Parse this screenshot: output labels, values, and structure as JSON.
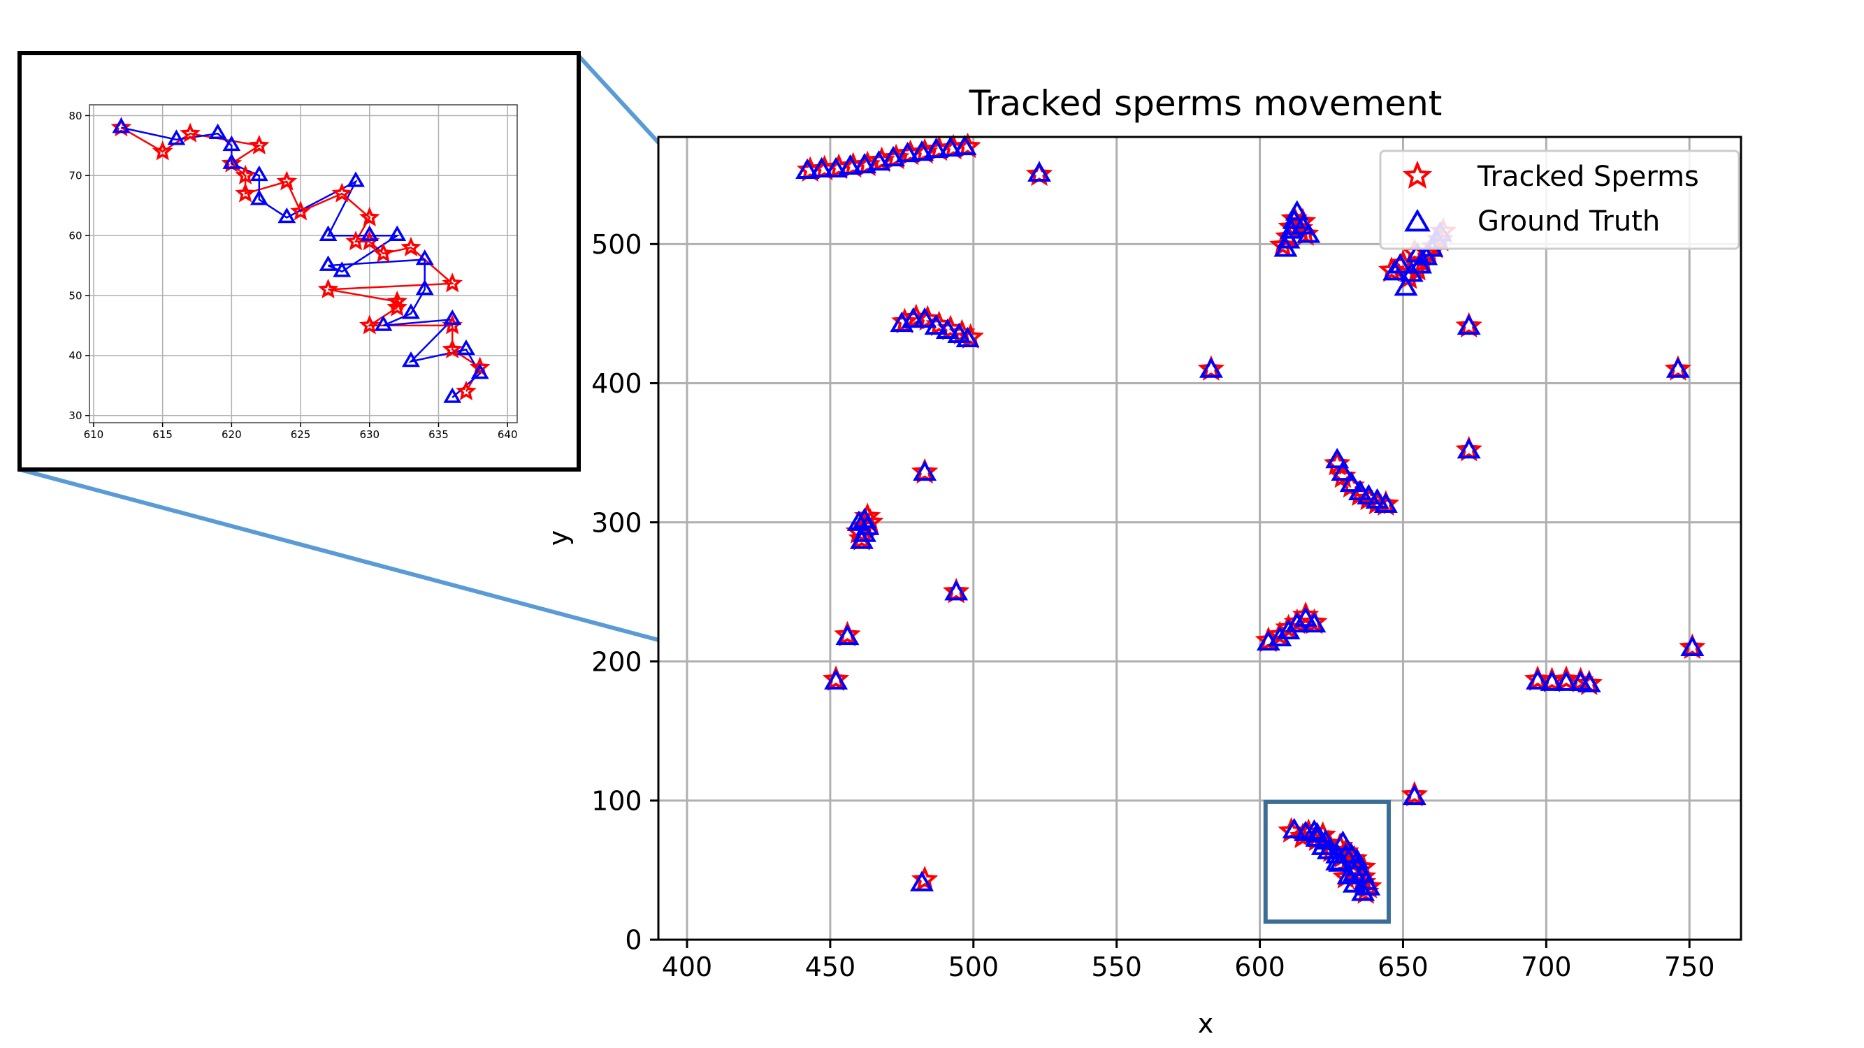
{
  "chart_data": [
    {
      "type": "scatter",
      "title": "Tracked sperms movement",
      "xlabel": "x",
      "ylabel": "y",
      "xlim": [
        390,
        768
      ],
      "ylim": [
        0,
        577
      ],
      "xticks": [
        400,
        450,
        500,
        550,
        600,
        650,
        700,
        750
      ],
      "yticks": [
        0,
        100,
        200,
        300,
        400,
        500
      ],
      "grid": true,
      "legend_position": "top-right",
      "legend": [
        {
          "label": "Tracked Sperms",
          "marker": "star",
          "color": "#ff0000"
        },
        {
          "label": "Ground Truth",
          "marker": "triangle",
          "color": "#0000ff"
        }
      ],
      "series": [
        {
          "name": "Tracked Sperms",
          "marker": "star",
          "color": "#ff0000",
          "points": [
            [
              443,
              553
            ],
            [
              448,
              554
            ],
            [
              453,
              555
            ],
            [
              458,
              556
            ],
            [
              463,
              557
            ],
            [
              468,
              560
            ],
            [
              473,
              562
            ],
            [
              478,
              565
            ],
            [
              483,
              566
            ],
            [
              488,
              568
            ],
            [
              493,
              569
            ],
            [
              498,
              570
            ],
            [
              523,
              550
            ],
            [
              608,
              499
            ],
            [
              610,
              505
            ],
            [
              611,
              512
            ],
            [
              612,
              518
            ],
            [
              614,
              511
            ],
            [
              616,
              507
            ],
            [
              615,
              516
            ],
            [
              652,
              476
            ],
            [
              655,
              482
            ],
            [
              657,
              487
            ],
            [
              659,
              493
            ],
            [
              661,
              498
            ],
            [
              663,
              503
            ],
            [
              664,
              509
            ],
            [
              650,
              486
            ],
            [
              646,
              481
            ],
            [
              654,
              494
            ],
            [
              476,
              444
            ],
            [
              480,
              447
            ],
            [
              484,
              446
            ],
            [
              488,
              442
            ],
            [
              492,
              439
            ],
            [
              496,
              436
            ],
            [
              499,
              433
            ],
            [
              583,
              410
            ],
            [
              673,
              441
            ],
            [
              746,
              410
            ],
            [
              673,
              352
            ],
            [
              483,
              336
            ],
            [
              627,
              342
            ],
            [
              629,
              333
            ],
            [
              632,
              326
            ],
            [
              635,
              320
            ],
            [
              638,
              317
            ],
            [
              641,
              314
            ],
            [
              644,
              313
            ],
            [
              460,
              293
            ],
            [
              462,
              297
            ],
            [
              464,
              300
            ],
            [
              461,
              288
            ],
            [
              463,
              304
            ],
            [
              494,
              250
            ],
            [
              603,
              215
            ],
            [
              607,
              219
            ],
            [
              610,
              224
            ],
            [
              613,
              228
            ],
            [
              616,
              233
            ],
            [
              619,
              228
            ],
            [
              456,
              219
            ],
            [
              751,
              210
            ],
            [
              452,
              187
            ],
            [
              697,
              187
            ],
            [
              702,
              186
            ],
            [
              707,
              187
            ],
            [
              712,
              186
            ],
            [
              715,
              184
            ],
            [
              654,
              104
            ],
            [
              611,
              78
            ],
            [
              615,
              74
            ],
            [
              617,
              77
            ],
            [
              620,
              72
            ],
            [
              622,
              75
            ],
            [
              624,
              69
            ],
            [
              625,
              64
            ],
            [
              628,
              67
            ],
            [
              629,
              60
            ],
            [
              630,
              63
            ],
            [
              631,
              57
            ],
            [
              632,
              49
            ],
            [
              633,
              58
            ],
            [
              636,
              52
            ],
            [
              630,
              45
            ],
            [
              636,
              45
            ],
            [
              636,
              41
            ],
            [
              638,
              38
            ],
            [
              637,
              34
            ],
            [
              483,
              43
            ]
          ]
        },
        {
          "name": "Ground Truth",
          "marker": "triangle",
          "color": "#0000ff",
          "points": [
            [
              442,
              552
            ],
            [
              447,
              553
            ],
            [
              452,
              553
            ],
            [
              457,
              555
            ],
            [
              462,
              556
            ],
            [
              467,
              558
            ],
            [
              472,
              561
            ],
            [
              477,
              564
            ],
            [
              482,
              565
            ],
            [
              487,
              567
            ],
            [
              492,
              568
            ],
            [
              497,
              569
            ],
            [
              523,
              550
            ],
            [
              609,
              496
            ],
            [
              610,
              502
            ],
            [
              611,
              509
            ],
            [
              612,
              516
            ],
            [
              613,
              522
            ],
            [
              615,
              512
            ],
            [
              617,
              506
            ],
            [
              651,
              468
            ],
            [
              653,
              478
            ],
            [
              656,
              484
            ],
            [
              658,
              490
            ],
            [
              660,
              496
            ],
            [
              662,
              501
            ],
            [
              663,
              507
            ],
            [
              647,
              479
            ],
            [
              649,
              484
            ],
            [
              655,
              492
            ],
            [
              475,
              442
            ],
            [
              479,
              445
            ],
            [
              483,
              445
            ],
            [
              487,
              440
            ],
            [
              491,
              437
            ],
            [
              495,
              434
            ],
            [
              498,
              431
            ],
            [
              583,
              409
            ],
            [
              673,
              440
            ],
            [
              746,
              409
            ],
            [
              673,
              351
            ],
            [
              483,
              335
            ],
            [
              627,
              344
            ],
            [
              629,
              335
            ],
            [
              632,
              327
            ],
            [
              635,
              321
            ],
            [
              638,
              318
            ],
            [
              641,
              315
            ],
            [
              644,
              312
            ],
            [
              461,
              286
            ],
            [
              462,
              291
            ],
            [
              463,
              296
            ],
            [
              460,
              299
            ],
            [
              462,
              301
            ],
            [
              494,
              249
            ],
            [
              603,
              213
            ],
            [
              607,
              216
            ],
            [
              610,
              221
            ],
            [
              613,
              226
            ],
            [
              616,
              230
            ],
            [
              619,
              226
            ],
            [
              456,
              217
            ],
            [
              751,
              209
            ],
            [
              452,
              185
            ],
            [
              697,
              185
            ],
            [
              702,
              184
            ],
            [
              707,
              184
            ],
            [
              712,
              184
            ],
            [
              715,
              183
            ],
            [
              654,
              102
            ],
            [
              612,
              78
            ],
            [
              616,
              76
            ],
            [
              619,
              77
            ],
            [
              620,
              75
            ],
            [
              620,
              72
            ],
            [
              622,
              66
            ],
            [
              623,
              70
            ],
            [
              624,
              63
            ],
            [
              627,
              60
            ],
            [
              627,
              55
            ],
            [
              628,
              54
            ],
            [
              629,
              69
            ],
            [
              630,
              60
            ],
            [
              632,
              60
            ],
            [
              633,
              47
            ],
            [
              634,
              56
            ],
            [
              631,
              45
            ],
            [
              634,
              51
            ],
            [
              633,
              39
            ],
            [
              636,
              46
            ],
            [
              637,
              41
            ],
            [
              638,
              37
            ],
            [
              636,
              33
            ],
            [
              482,
              40
            ]
          ]
        }
      ],
      "highlight_box": {
        "x": [
          602,
          645
        ],
        "y": [
          13,
          99
        ],
        "color": "#3b6e96"
      }
    },
    {
      "type": "scatter",
      "title": "",
      "xlabel": "",
      "ylabel": "",
      "xlim": [
        609.7,
        640.7
      ],
      "ylim": [
        28.8,
        81.8
      ],
      "xticks": [
        610,
        615,
        620,
        625,
        630,
        635,
        640
      ],
      "yticks": [
        30,
        40,
        50,
        60,
        70,
        80
      ],
      "grid": true,
      "series": [
        {
          "name": "Tracked Sperms",
          "marker": "star",
          "color": "#ff0000",
          "connected": true,
          "points": [
            [
              612,
              78
            ],
            [
              615,
              74
            ],
            [
              617,
              77
            ],
            [
              622,
              75
            ],
            [
              620,
              72
            ],
            [
              621,
              70
            ],
            [
              621,
              67
            ],
            [
              624,
              69
            ],
            [
              625,
              64
            ],
            [
              628,
              67
            ],
            [
              630,
              63
            ],
            [
              629,
              59
            ],
            [
              630,
              59
            ],
            [
              631,
              57
            ],
            [
              633,
              58
            ],
            [
              636,
              52
            ],
            [
              627,
              51
            ],
            [
              632,
              49
            ],
            [
              632,
              48
            ],
            [
              630,
              45
            ],
            [
              636,
              45
            ],
            [
              636,
              41
            ],
            [
              638,
              38
            ],
            [
              637,
              34
            ]
          ]
        },
        {
          "name": "Ground Truth",
          "marker": "triangle",
          "color": "#0000ff",
          "connected": true,
          "points": [
            [
              612,
              78
            ],
            [
              616,
              76
            ],
            [
              619,
              77
            ],
            [
              620,
              75
            ],
            [
              620,
              72
            ],
            [
              622,
              70
            ],
            [
              622,
              66
            ],
            [
              624,
              63
            ],
            [
              629,
              69
            ],
            [
              627,
              60
            ],
            [
              630,
              60
            ],
            [
              632,
              60
            ],
            [
              628,
              54
            ],
            [
              627,
              55
            ],
            [
              634,
              56
            ],
            [
              634,
              51
            ],
            [
              633,
              47
            ],
            [
              631,
              45
            ],
            [
              636,
              46
            ],
            [
              633,
              39
            ],
            [
              637,
              41
            ],
            [
              638,
              37
            ],
            [
              636,
              33
            ]
          ]
        }
      ]
    }
  ]
}
